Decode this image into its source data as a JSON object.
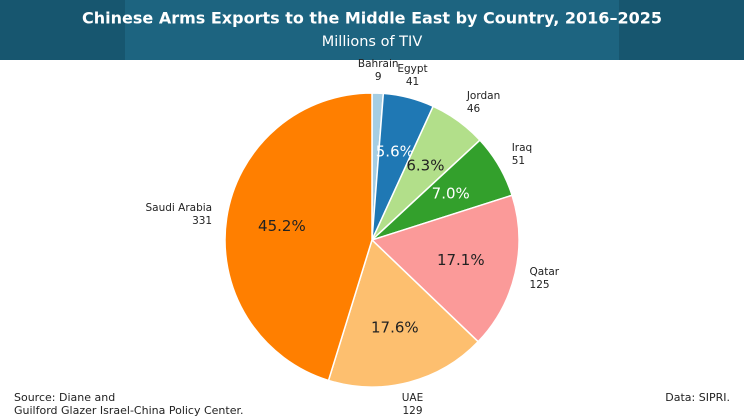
{
  "chart_data": {
    "type": "pie",
    "title": "Chinese Arms Exports to the Middle East by Country, 2016–2025",
    "subtitle": "Millions of TIV",
    "categories": [
      "Bahrain",
      "Egypt",
      "Jordan",
      "Iraq",
      "Qatar",
      "UAE",
      "Saudi Arabia"
    ],
    "values": [
      9,
      41,
      46,
      51,
      125,
      129,
      331
    ],
    "percent_labels": [
      null,
      "5.6%",
      "6.3%",
      "7.0%",
      "17.1%",
      "17.6%",
      "45.2%"
    ],
    "colors": [
      "#a6cee3",
      "#1f78b4",
      "#b2df8a",
      "#33a02c",
      "#fb9a99",
      "#fdbf6f",
      "#ff7f00"
    ],
    "source": [
      "Source: Diane and",
      "Guilford Glazer Israel-China Policy Center."
    ],
    "data_note": "Data: SIPRI."
  }
}
